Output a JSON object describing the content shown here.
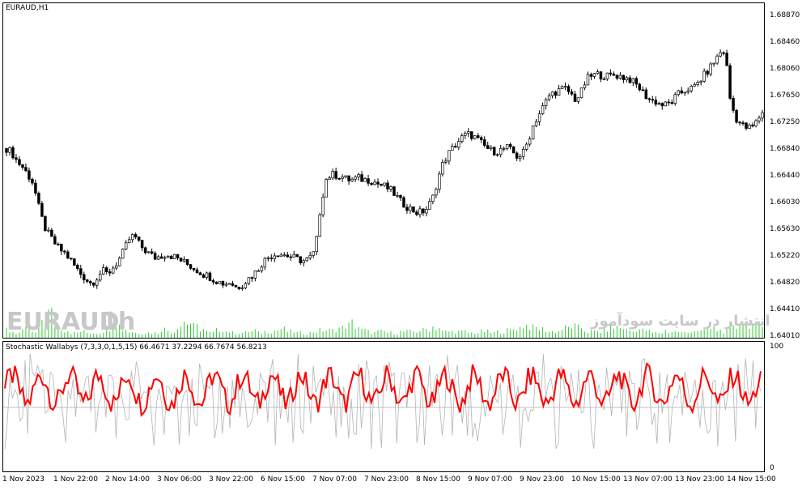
{
  "chart": {
    "symbol_label": "EURAUD,H1",
    "watermark_symbol": "EURAUD",
    "watermark_tf": "1h",
    "watermark_site": "انتشار در سایت سودآموز",
    "price_ticks": [
      "1.68870",
      "1.68460",
      "1.68060",
      "1.67650",
      "1.67250",
      "1.66840",
      "1.66440",
      "1.66030",
      "1.65630",
      "1.65220",
      "1.64820",
      "1.64410",
      "1.64010"
    ],
    "time_ticks": [
      "1 Nov 2023",
      "1 Nov 22:00",
      "2 Nov 14:00",
      "3 Nov 06:00",
      "3 Nov 22:00",
      "6 Nov 15:00",
      "7 Nov 07:00",
      "7 Nov 23:00",
      "8 Nov 15:00",
      "9 Nov 07:00",
      "9 Nov 23:00",
      "10 Nov 15:00",
      "13 Nov 07:00",
      "13 Nov 23:00",
      "14 Nov 15:00"
    ],
    "colors": {
      "candle": "#000000",
      "volume": "#32cd32",
      "stoch_main": "#ff0000",
      "stoch_signal": "#b4b4b4"
    }
  },
  "indicator": {
    "label": "Stochastic Wallabys (7,3,3,0,1,5,15) 66.4671 37.2294 66.7674 56.8213",
    "scale_max": "100",
    "scale_min": "0"
  },
  "chart_data": {
    "type": "candlestick",
    "ylim": [
      1.6401,
      1.6895
    ],
    "close_path": [
      1.6688,
      1.6682,
      1.6668,
      1.666,
      1.6648,
      1.6635,
      1.66,
      1.657,
      1.6555,
      1.6543,
      1.6533,
      1.6527,
      1.6517,
      1.6505,
      1.6495,
      1.6487,
      1.648,
      1.649,
      1.65,
      1.6495,
      1.6505,
      1.6515,
      1.653,
      1.6548,
      1.6555,
      1.654,
      1.6532,
      1.6525,
      1.652,
      1.6523,
      1.6526,
      1.6523,
      1.652,
      1.6515,
      1.651,
      1.6505,
      1.65,
      1.6495,
      1.6492,
      1.6487,
      1.6483,
      1.648,
      1.6483,
      1.6475,
      1.6477,
      1.6485,
      1.6492,
      1.65,
      1.6512,
      1.652,
      1.6525,
      1.6527,
      1.6525,
      1.6523,
      1.652,
      1.6517,
      1.6515,
      1.652,
      1.653,
      1.66,
      1.664,
      1.6648,
      1.6647,
      1.6645,
      1.664,
      1.664,
      1.6643,
      1.664,
      1.664,
      1.6637,
      1.6633,
      1.663,
      1.6625,
      1.6617,
      1.6607,
      1.66,
      1.6595,
      1.659,
      1.659,
      1.6596,
      1.661,
      1.664,
      1.6665,
      1.668,
      1.669,
      1.67,
      1.6708,
      1.671,
      1.6705,
      1.6698,
      1.669,
      1.6685,
      1.6683,
      1.6686,
      1.669,
      1.6683,
      1.6675,
      1.668,
      1.67,
      1.6725,
      1.674,
      1.6755,
      1.677,
      1.6775,
      1.6778,
      1.678,
      1.6772,
      1.6762,
      1.6775,
      1.6795,
      1.68,
      1.6802,
      1.68,
      1.6799,
      1.6801,
      1.68,
      1.6797,
      1.6795,
      1.6788,
      1.678,
      1.677,
      1.6762,
      1.676,
      1.6755,
      1.6755,
      1.676,
      1.677,
      1.6775,
      1.678,
      1.678,
      1.679,
      1.68,
      1.681,
      1.6822,
      1.6835,
      1.6838,
      1.676,
      1.6735,
      1.6725,
      1.672,
      1.672,
      1.673,
      1.6745
    ],
    "volume_profile": [
      7,
      5,
      4,
      5,
      7,
      4,
      10,
      15,
      20,
      10,
      8,
      6,
      4,
      4,
      5,
      4,
      4,
      4,
      6,
      8,
      12,
      10,
      7,
      5,
      4,
      4,
      4,
      4,
      4,
      7,
      6,
      5,
      10,
      13,
      12,
      9,
      7,
      5,
      4,
      6,
      7,
      5,
      4,
      4,
      4,
      5,
      6,
      4,
      5,
      5,
      6,
      7,
      5,
      5,
      4,
      4,
      4,
      5,
      6,
      6,
      6,
      7,
      8,
      10,
      12,
      9,
      6,
      5,
      4,
      5,
      5,
      4,
      4,
      5,
      5,
      5,
      5,
      6,
      7,
      9,
      8,
      5,
      5,
      5,
      5,
      5,
      4,
      4,
      5,
      5,
      4,
      5,
      5,
      6,
      7,
      8,
      10,
      9,
      8,
      7,
      6,
      5,
      5,
      7,
      8,
      9,
      8,
      6,
      5,
      5,
      5,
      7,
      8,
      9,
      8,
      6,
      5,
      7,
      6,
      5,
      4,
      4,
      6,
      5,
      5,
      4,
      4,
      6,
      6,
      5,
      7,
      8,
      6,
      5,
      10,
      8,
      14,
      12,
      11,
      10,
      9
    ],
    "stoch_levels": [
      100,
      0
    ]
  }
}
